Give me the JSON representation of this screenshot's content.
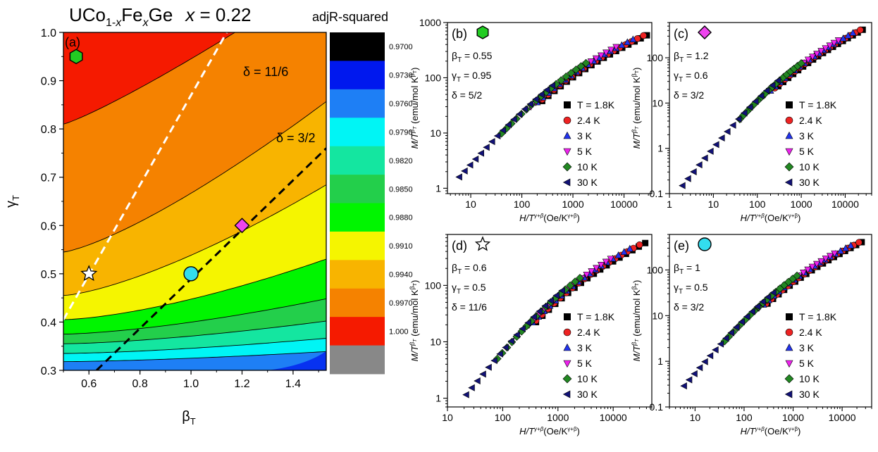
{
  "figure_title": {
    "pre": "UCo",
    "sub1": "1-",
    "sub1x": "x",
    "mid": "Fe",
    "sub2": "x",
    "post": "Ge",
    "eqx": "x",
    "eq": " = 0.22"
  },
  "chart_data": [
    {
      "id": "a",
      "type": "heatmap",
      "panel_label": "(a)",
      "xlabel": "β",
      "xlabel_sub": "T",
      "ylabel": "γ",
      "ylabel_sub": "T",
      "xlim": [
        0.5,
        1.53
      ],
      "ylim": [
        0.3,
        1.0
      ],
      "xticks": [
        "0.6",
        "0.8",
        "1.0",
        "1.2",
        "1.4"
      ],
      "yticks": [
        "0.3",
        "0.4",
        "0.5",
        "0.6",
        "0.7",
        "0.8",
        "0.9",
        "1.0"
      ],
      "colorbar": {
        "title": "adjR-squared",
        "colors": [
          "#000000",
          "#0018ee",
          "#1e7ff5",
          "#00f5f5",
          "#14e6a0",
          "#23cf4b",
          "#00f500",
          "#f5f500",
          "#f8b400",
          "#f58200",
          "#f51a00",
          "#888888"
        ],
        "tick_labels": [
          "0.9700",
          "0.9730",
          "0.9760",
          "0.9790",
          "0.9820",
          "0.9850",
          "0.9880",
          "0.9910",
          "0.9940",
          "0.9970",
          "1.000"
        ]
      },
      "lines": [
        {
          "label": "δ = 11/6",
          "style": "white dashed",
          "points": [
            [
              0.5,
              0.405
            ],
            [
              1.14,
              1.0
            ]
          ]
        },
        {
          "label": "δ = 3/2",
          "style": "black dashed",
          "points": [
            [
              0.63,
              0.3
            ],
            [
              1.53,
              0.76
            ]
          ]
        }
      ],
      "markers": [
        {
          "shape": "hexagon",
          "color": "#22cc22",
          "x": 0.55,
          "y": 0.95
        },
        {
          "shape": "diamond",
          "color": "#ee44ee",
          "x": 1.2,
          "y": 0.6
        },
        {
          "shape": "star",
          "color": "#ffffff",
          "x": 0.6,
          "y": 0.5
        },
        {
          "shape": "circle",
          "color": "#33ddee",
          "x": 1.0,
          "y": 0.5
        }
      ]
    },
    {
      "id": "b",
      "type": "scatter",
      "log": true,
      "panel_label": "(b)",
      "marker": {
        "shape": "hexagon",
        "color": "#22cc22"
      },
      "params": [
        "β",
        "T",
        " = 0.55",
        "γ",
        "T",
        " = 0.95",
        "δ = 5/2"
      ],
      "xlim": [
        3.5,
        35000
      ],
      "ylim": [
        0.8,
        1000
      ],
      "xticks": [
        {
          "v": 10,
          "t": "10"
        },
        {
          "v": 100,
          "t": "100"
        },
        {
          "v": 1000,
          "t": "1000"
        },
        {
          "v": 10000,
          "t": "10000"
        }
      ],
      "yticks": [
        {
          "v": 1,
          "t": "1"
        },
        {
          "v": 10,
          "t": "10"
        },
        {
          "v": 100,
          "t": "100"
        },
        {
          "v": 1000,
          "t": "1000"
        }
      ],
      "ylabel": "M/T",
      "ylabel_unit": " (emu/mol K",
      "xlabel": "H/T",
      "xlabel_unit": "(Oe/K",
      "curve": {
        "x": [
          5,
          30000
        ],
        "y": [
          1.15,
          700
        ]
      },
      "series": [
        {
          "name": "T = 1.8K",
          "x": [
            250,
            1500,
            28000
          ],
          "y": [
            50,
            300,
            680
          ]
        },
        {
          "name": "2.4 K",
          "x": [
            250,
            1500,
            24000
          ],
          "y": [
            50,
            300,
            640
          ]
        },
        {
          "name": "3 K",
          "x": [
            200,
            1200,
            15000
          ],
          "y": [
            45,
            270,
            550
          ]
        },
        {
          "name": "5 K",
          "x": [
            150,
            1000,
            7000
          ],
          "y": [
            40,
            240,
            420
          ]
        },
        {
          "name": "10 K",
          "x": [
            40,
            400,
            1800
          ],
          "y": [
            8,
            120,
            260
          ]
        },
        {
          "name": "30 K",
          "x": [
            6,
            50,
            400
          ],
          "y": [
            1.2,
            20,
            110
          ]
        }
      ]
    },
    {
      "id": "c",
      "type": "scatter",
      "log": true,
      "panel_label": "(c)",
      "marker": {
        "shape": "diamond",
        "color": "#ee44ee"
      },
      "params": [
        "β",
        "T",
        " = 1.2",
        "γ",
        "T",
        " = 0.6",
        "δ = 3/2"
      ],
      "xlim": [
        1,
        40000
      ],
      "ylim": [
        0.1,
        600
      ],
      "xticks": [
        {
          "v": 1,
          "t": "1"
        },
        {
          "v": 10,
          "t": "10"
        },
        {
          "v": 100,
          "t": "100"
        },
        {
          "v": 1000,
          "t": "1000"
        },
        {
          "v": 10000,
          "t": "10000"
        }
      ],
      "yticks": [
        {
          "v": 0.1,
          "t": "0.1"
        },
        {
          "v": 1,
          "t": "1"
        },
        {
          "v": 10,
          "t": "10"
        },
        {
          "v": 100,
          "t": "100"
        }
      ],
      "ylabel": "M/T",
      "ylabel_unit": " (emu/mol K",
      "xlabel": "H/T",
      "xlabel_unit": "(Oe/K",
      "curve": {
        "x": [
          2,
          25000
        ],
        "y": [
          0.13,
          480
        ]
      },
      "series": [
        {
          "name": "T = 1.8K",
          "x": [
            300,
            3000,
            25000
          ],
          "y": [
            25,
            150,
            480
          ]
        },
        {
          "name": "2.4 K",
          "x": [
            250,
            2500,
            22000
          ],
          "y": [
            22,
            140,
            460
          ]
        },
        {
          "name": "3 K",
          "x": [
            200,
            2000,
            15000
          ],
          "y": [
            18,
            120,
            400
          ]
        },
        {
          "name": "5 K",
          "x": [
            150,
            1500,
            7000
          ],
          "y": [
            15,
            100,
            300
          ]
        },
        {
          "name": "10 K",
          "x": [
            40,
            300,
            1000
          ],
          "y": [
            2.5,
            25,
            60
          ]
        },
        {
          "name": "30 K",
          "x": [
            2,
            30,
            300
          ],
          "y": [
            0.13,
            1.5,
            25
          ]
        }
      ]
    },
    {
      "id": "d",
      "type": "scatter",
      "log": true,
      "panel_label": "(d)",
      "marker": {
        "shape": "star",
        "color": "#ffffff"
      },
      "params": [
        "β",
        "T",
        " = 0.6",
        "γ",
        "T",
        " = 0.5",
        "δ = 11/6"
      ],
      "xlim": [
        10,
        50000
      ],
      "ylim": [
        0.7,
        800
      ],
      "xticks": [
        {
          "v": 10,
          "t": "10"
        },
        {
          "v": 100,
          "t": "100"
        },
        {
          "v": 1000,
          "t": "1000"
        },
        {
          "v": 10000,
          "t": "10000"
        }
      ],
      "yticks": [
        {
          "v": 1,
          "t": "1"
        },
        {
          "v": 10,
          "t": "10"
        },
        {
          "v": 100,
          "t": "100"
        }
      ],
      "ylabel": "M/T",
      "ylabel_unit": " (emu/mol K",
      "xlabel": "H/T",
      "xlabel_unit": "(Oe/K",
      "curve": {
        "x": [
          22,
          38000
        ],
        "y": [
          1,
          650
        ]
      },
      "series": [
        {
          "name": "T = 1.8K",
          "x": [
            400,
            3000,
            38000
          ],
          "y": [
            30,
            200,
            650
          ]
        },
        {
          "name": "2.4 K",
          "x": [
            400,
            3000,
            30000
          ],
          "y": [
            33,
            200,
            600
          ]
        },
        {
          "name": "3 K",
          "x": [
            350,
            2500,
            20000
          ],
          "y": [
            30,
            180,
            500
          ]
        },
        {
          "name": "5 K",
          "x": [
            300,
            2000,
            9000
          ],
          "y": [
            28,
            160,
            380
          ]
        },
        {
          "name": "10 K",
          "x": [
            80,
            800,
            2500
          ],
          "y": [
            5,
            60,
            140
          ]
        },
        {
          "name": "30 K",
          "x": [
            22,
            150,
            1200
          ],
          "y": [
            1,
            8,
            45
          ]
        }
      ]
    },
    {
      "id": "e",
      "type": "scatter",
      "log": true,
      "panel_label": "(e)",
      "marker": {
        "shape": "circle",
        "color": "#33ddee"
      },
      "params": [
        "β",
        "T",
        " = 1",
        "γ",
        "T",
        " = 0.5",
        "δ = 3/2"
      ],
      "xlim": [
        3,
        40000
      ],
      "ylim": [
        0.1,
        600
      ],
      "xticks": [
        {
          "v": 10,
          "t": "10"
        },
        {
          "v": 100,
          "t": "100"
        },
        {
          "v": 1000,
          "t": "1000"
        },
        {
          "v": 10000,
          "t": "10000"
        }
      ],
      "yticks": [
        {
          "v": 0.1,
          "t": "0.1"
        },
        {
          "v": 1,
          "t": "1"
        },
        {
          "v": 10,
          "t": "10"
        },
        {
          "v": 100,
          "t": "100"
        }
      ],
      "ylabel": "M/T",
      "ylabel_unit": " (emu/mol K",
      "xlabel": "H/T",
      "xlabel_unit": "(Oe/K",
      "curve": {
        "x": [
          6,
          25000
        ],
        "y": [
          0.25,
          470
        ]
      },
      "series": [
        {
          "name": "T = 1.8K",
          "x": [
            300,
            3000,
            25000
          ],
          "y": [
            22,
            150,
            470
          ]
        },
        {
          "name": "2.4 K",
          "x": [
            280,
            2800,
            22000
          ],
          "y": [
            20,
            140,
            450
          ]
        },
        {
          "name": "3 K",
          "x": [
            250,
            2200,
            15000
          ],
          "y": [
            18,
            120,
            400
          ]
        },
        {
          "name": "5 K",
          "x": [
            200,
            1800,
            7000
          ],
          "y": [
            15,
            100,
            300
          ]
        },
        {
          "name": "10 K",
          "x": [
            40,
            400,
            1200
          ],
          "y": [
            2,
            25,
            60
          ]
        },
        {
          "name": "30 K",
          "x": [
            6,
            50,
            400
          ],
          "y": [
            0.25,
            3,
            25
          ]
        }
      ]
    }
  ]
}
